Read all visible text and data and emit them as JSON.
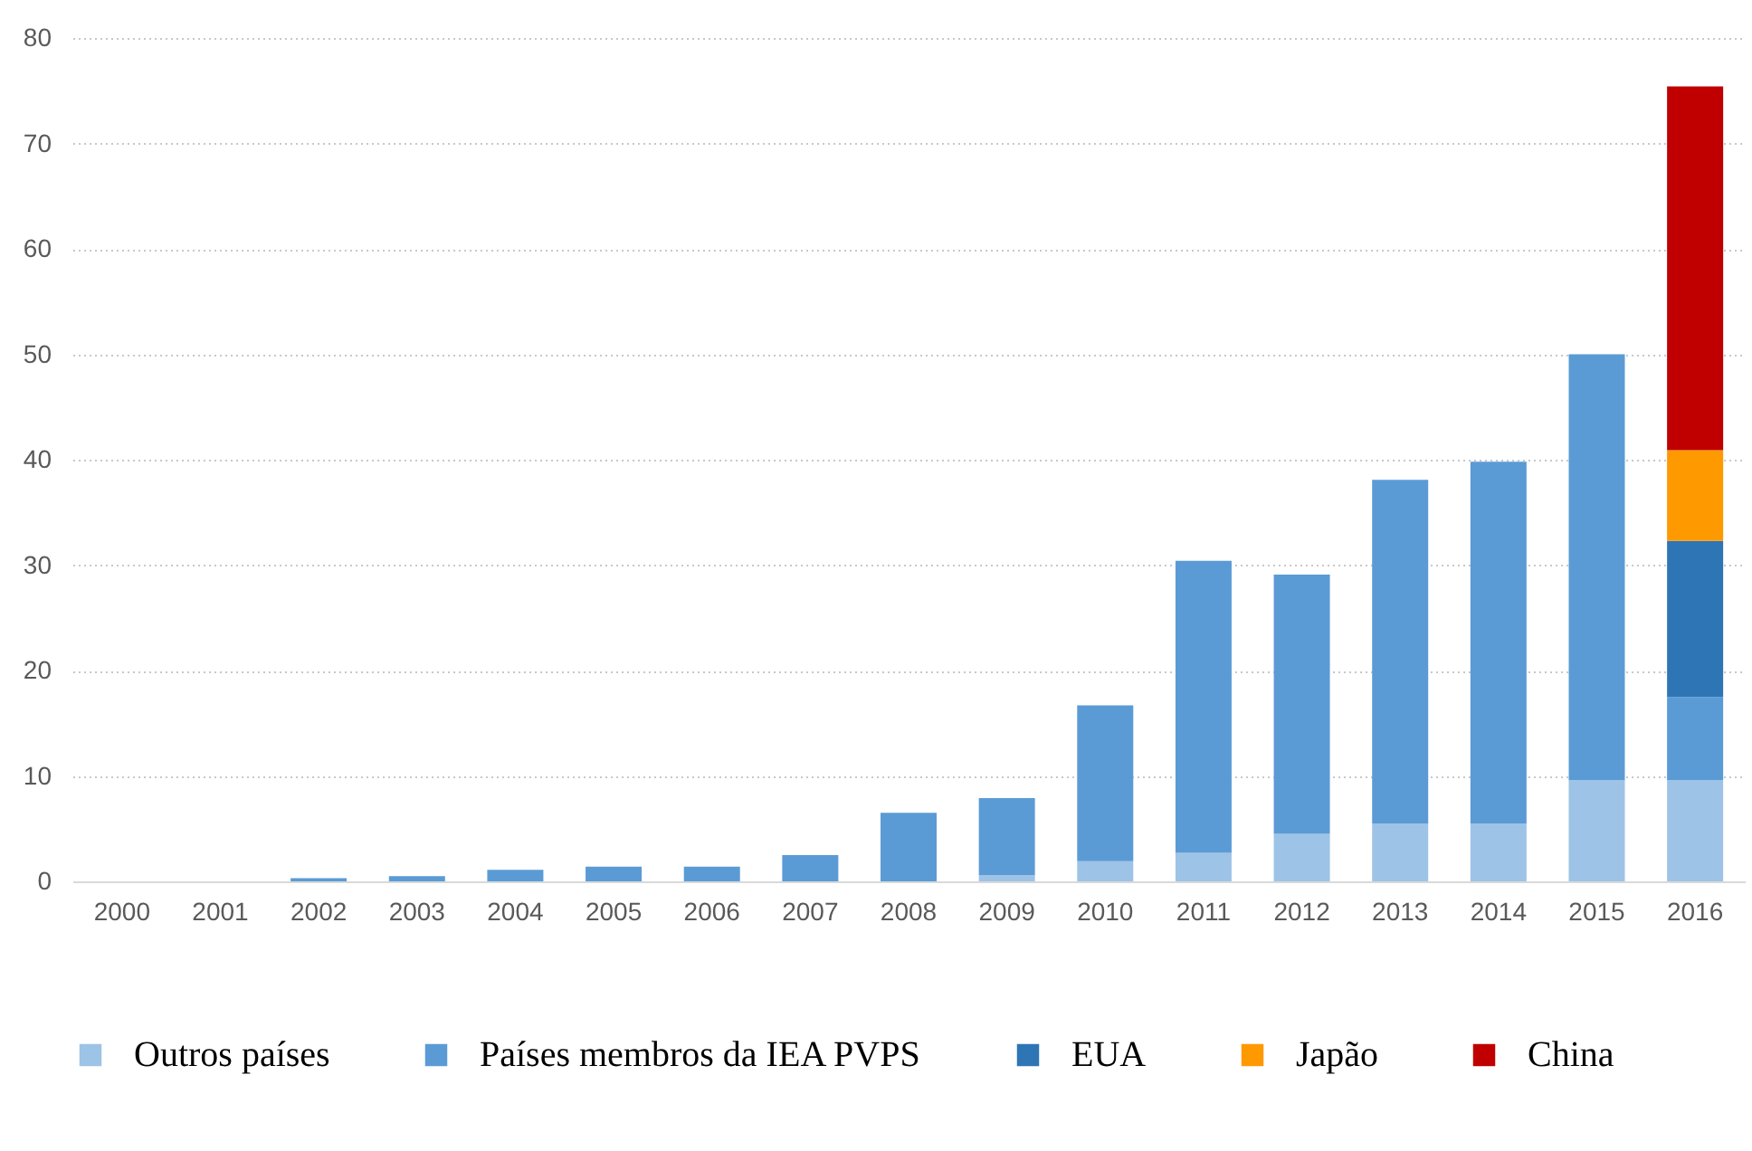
{
  "chart_data": {
    "type": "bar",
    "stacked": true,
    "categories": [
      "2000",
      "2001",
      "2002",
      "2003",
      "2004",
      "2005",
      "2006",
      "2007",
      "2008",
      "2009",
      "2010",
      "2011",
      "2012",
      "2013",
      "2014",
      "2015",
      "2016"
    ],
    "series": [
      {
        "name": "Outros países",
        "color": "#9dc3e6",
        "values": [
          null,
          null,
          null,
          null,
          null,
          null,
          null,
          null,
          null,
          0.6,
          1.9,
          2.7,
          4.5,
          5.5,
          5.5,
          9.6,
          9.6
        ]
      },
      {
        "name": "Países membros da IEA PVPS",
        "color": "#5b9bd5",
        "values": [
          null,
          null,
          0.3,
          0.5,
          1.1,
          1.4,
          1.4,
          2.5,
          6.5,
          7.3,
          14.8,
          27.7,
          24.6,
          32.6,
          34.3,
          40.4,
          7.9
        ]
      },
      {
        "name": "EUA",
        "color": "#2e75b6",
        "values": [
          null,
          null,
          null,
          null,
          null,
          null,
          null,
          null,
          null,
          null,
          null,
          null,
          null,
          null,
          null,
          null,
          14.8
        ]
      },
      {
        "name": "Japão",
        "color": "#ff9900",
        "values": [
          null,
          null,
          null,
          null,
          null,
          null,
          null,
          null,
          null,
          null,
          null,
          null,
          null,
          null,
          null,
          null,
          8.6
        ]
      },
      {
        "name": "China",
        "color": "#c00000",
        "values": [
          null,
          null,
          null,
          null,
          null,
          null,
          null,
          null,
          null,
          null,
          null,
          null,
          null,
          null,
          null,
          null,
          34.5
        ]
      }
    ],
    "ylim": [
      0,
      80
    ],
    "yticks": [
      0,
      10,
      20,
      30,
      40,
      50,
      60,
      70,
      80
    ],
    "grid": "y",
    "legend": "bottom"
  }
}
